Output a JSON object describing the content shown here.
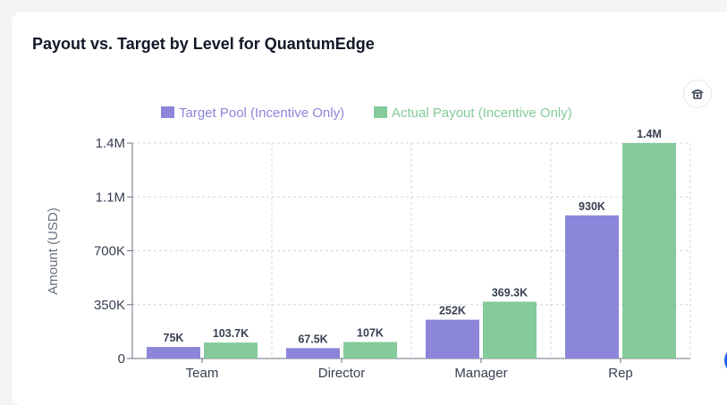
{
  "card": {
    "title": "Payout vs. Target by Level for QuantumEdge"
  },
  "toolbar": {
    "icon": "camera-rotate-icon"
  },
  "colors": {
    "target": "#8b86d9",
    "actual": "#84ca9b",
    "grid": "#d1d5db"
  },
  "chart_data": {
    "type": "bar",
    "title": "",
    "xlabel": "",
    "ylabel": "Amount (USD)",
    "categories": [
      "Team",
      "Director",
      "Manager",
      "Rep"
    ],
    "series": [
      {
        "name": "Target Pool (Incentive Only)",
        "values": [
          75000,
          67500,
          252000,
          930000
        ],
        "labels": [
          "75K",
          "67.5K",
          "252K",
          "930K"
        ]
      },
      {
        "name": "Actual Payout (Incentive Only)",
        "values": [
          103700,
          107000,
          369300,
          1400000
        ],
        "labels": [
          "103.7K",
          "107K",
          "369.3K",
          "1.4M"
        ]
      }
    ],
    "ylim": [
      0,
      1400000
    ],
    "yticks": [
      0,
      350000,
      700000,
      1050000,
      1400000
    ],
    "ytick_labels": [
      "0",
      "350K",
      "700K",
      "1.1M",
      "1.4M"
    ],
    "grid": true,
    "legend": "top-center"
  }
}
